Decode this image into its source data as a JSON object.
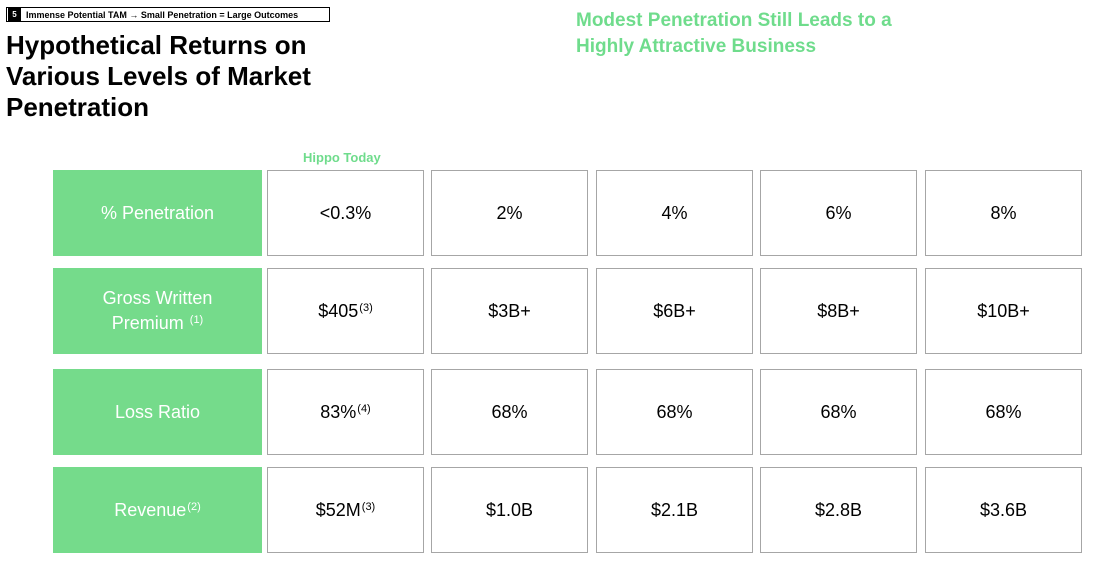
{
  "section_tag": {
    "number": "5",
    "text": "Immense Potential TAM → Small Penetration = Large Outcomes"
  },
  "title": "Hypothetical Returns on Various Levels of Market Penetration",
  "headline": "Modest Penetration Still Leads to a Highly Attractive Business",
  "column_note": "Hippo Today",
  "colors": {
    "accent_green": "#75db8b",
    "headline_green": "#6fdc8c",
    "cell_border": "#a6a6a6"
  },
  "rows": [
    {
      "label": "% Penetration",
      "label_sup": "",
      "label_line2": "",
      "label_line2_sup": "",
      "cells": [
        {
          "v": "<0.3%",
          "s": ""
        },
        {
          "v": "2%",
          "s": ""
        },
        {
          "v": "4%",
          "s": ""
        },
        {
          "v": "6%",
          "s": ""
        },
        {
          "v": "8%",
          "s": ""
        }
      ]
    },
    {
      "label": "Gross Written",
      "label_sup": "",
      "label_line2": "Premium",
      "label_line2_sup": "(1)",
      "cells": [
        {
          "v": "$405",
          "s": "(3)"
        },
        {
          "v": "$3B+",
          "s": ""
        },
        {
          "v": "$6B+",
          "s": ""
        },
        {
          "v": "$8B+",
          "s": ""
        },
        {
          "v": "$10B+",
          "s": ""
        }
      ]
    },
    {
      "label": "Loss Ratio",
      "label_sup": "",
      "label_line2": "",
      "label_line2_sup": "",
      "cells": [
        {
          "v": "83%",
          "s": "(4)"
        },
        {
          "v": "68%",
          "s": ""
        },
        {
          "v": "68%",
          "s": ""
        },
        {
          "v": "68%",
          "s": ""
        },
        {
          "v": "68%",
          "s": ""
        }
      ]
    },
    {
      "label": "Revenue",
      "label_sup": "(2)",
      "label_line2": "",
      "label_line2_sup": "",
      "cells": [
        {
          "v": "$52M",
          "s": "(3)"
        },
        {
          "v": "$1.0B",
          "s": ""
        },
        {
          "v": "$2.1B",
          "s": ""
        },
        {
          "v": "$2.8B",
          "s": ""
        },
        {
          "v": "$3.6B",
          "s": ""
        }
      ]
    }
  ]
}
